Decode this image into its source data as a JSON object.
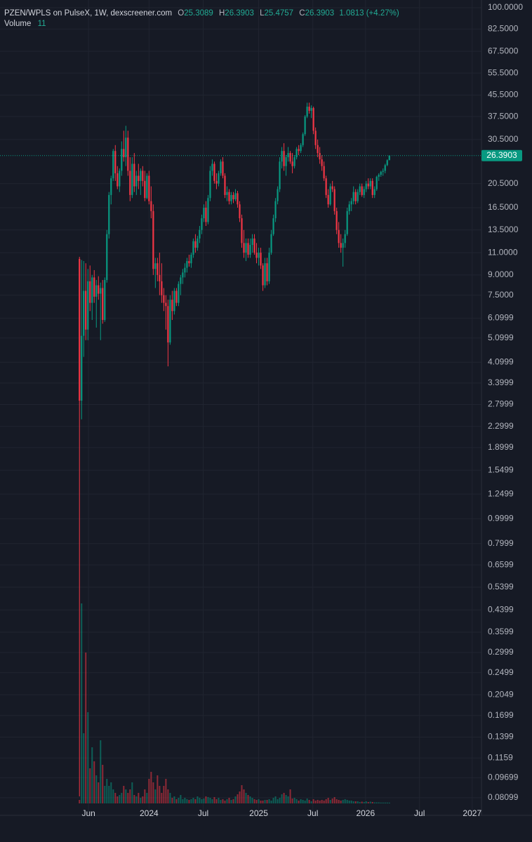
{
  "header": {
    "symbol": "PZEN/WPLS on PulseX, 1W, dexscreener.com",
    "open_label": "O",
    "open": "25.3089",
    "high_label": "H",
    "high": "26.3903",
    "low_label": "L",
    "low": "25.4757",
    "close_label": "C",
    "close": "26.3903",
    "change": "1.0813 (+4.27%)",
    "volume_label": "Volume",
    "volume": "11"
  },
  "chart_data": {
    "type": "candlestick",
    "log_scale": true,
    "grid": true,
    "up_color": "#089981",
    "down_color": "#f23645",
    "ylim": [
      0.07,
      107.2
    ],
    "yticks": [
      {
        "value": 100,
        "label": "100.0000"
      },
      {
        "value": 82.5,
        "label": "82.5000"
      },
      {
        "value": 67.5,
        "label": "67.5000"
      },
      {
        "value": 55.5,
        "label": "55.5000"
      },
      {
        "value": 45.5,
        "label": "45.5000"
      },
      {
        "value": 37.5,
        "label": "37.5000"
      },
      {
        "value": 30.5,
        "label": "30.5000"
      },
      {
        "value": 20.5,
        "label": "20.5000"
      },
      {
        "value": 16.5,
        "label": "16.5000"
      },
      {
        "value": 13.5,
        "label": "13.5000"
      },
      {
        "value": 11,
        "label": "11.0000"
      },
      {
        "value": 9,
        "label": "9.0000"
      },
      {
        "value": 7.5,
        "label": "7.5000"
      },
      6.0999,
      5.0999,
      4.0999,
      3.3999,
      2.7999,
      2.2999,
      1.8999,
      1.5499,
      1.2499,
      0.9999,
      0.7999,
      0.6599,
      0.5399,
      0.4399,
      0.3599,
      0.2999,
      0.2499,
      0.2049,
      0.1699,
      0.1399,
      0.1159,
      0.09699,
      0.08099
    ],
    "xlim": [
      -37.7,
      190.7
    ],
    "xticks": [
      {
        "value": 4.3,
        "label": "Jun"
      },
      {
        "value": 33,
        "label": "2024"
      },
      {
        "value": 58.7,
        "label": "Jul"
      },
      {
        "value": 85,
        "label": "2025"
      },
      {
        "value": 110.7,
        "label": "Jul"
      },
      {
        "value": 135.7,
        "label": "2026"
      },
      {
        "value": 161.3,
        "label": "Jul"
      },
      {
        "value": 186.3,
        "label": "2027"
      }
    ],
    "last_price": 26.3903,
    "vlim": [
      0,
      2900
    ],
    "ohlc": [
      [
        10.4,
        10.6,
        0.082,
        2.9
      ],
      [
        2.9,
        10.3,
        2.45,
        5.2
      ],
      [
        5.2,
        10.2,
        4.3,
        7.8
      ],
      [
        7.8,
        10,
        5,
        5.5
      ],
      [
        5.5,
        9.5,
        5,
        8.5
      ],
      [
        8.5,
        9.8,
        6.5,
        7
      ],
      [
        7,
        9,
        6,
        8.8
      ],
      [
        8.8,
        9.4,
        7,
        7.4
      ],
      [
        7.4,
        8.6,
        5.6,
        8.2
      ],
      [
        8.2,
        8.9,
        7.2,
        7.6
      ],
      [
        7.6,
        8.4,
        5,
        8
      ],
      [
        8,
        8.6,
        5.8,
        6
      ],
      [
        6,
        8.8,
        5.9,
        8.6
      ],
      [
        8.6,
        13.5,
        8.4,
        13
      ],
      [
        13,
        19,
        12.5,
        18.5
      ],
      [
        18.5,
        22,
        17,
        21.5
      ],
      [
        21.5,
        28,
        21,
        27.5
      ],
      [
        27.5,
        29,
        21,
        22.5
      ],
      [
        22.5,
        24,
        19.5,
        20
      ],
      [
        20,
        23.5,
        19,
        23
      ],
      [
        23,
        30,
        22,
        28
      ],
      [
        28,
        33,
        25,
        26
      ],
      [
        26,
        34.5,
        24,
        31
      ],
      [
        31,
        33,
        22,
        23
      ],
      [
        23,
        26,
        17.5,
        18.5
      ],
      [
        18.5,
        26,
        18,
        24.5
      ],
      [
        24.5,
        27,
        19,
        20
      ],
      [
        20,
        23,
        18.5,
        22
      ],
      [
        22,
        24.5,
        19.5,
        21
      ],
      [
        21,
        23.5,
        18.5,
        23
      ],
      [
        23,
        24,
        20,
        21
      ],
      [
        21,
        23,
        17.5,
        18
      ],
      [
        18,
        22.5,
        17.8,
        22
      ],
      [
        22,
        23,
        17,
        17.5
      ],
      [
        17.5,
        20,
        15,
        16
      ],
      [
        16,
        17,
        9,
        9.5
      ],
      [
        9.5,
        10.5,
        8,
        10
      ],
      [
        10,
        10.5,
        8.5,
        9
      ],
      [
        9,
        11,
        7.5,
        8.5
      ],
      [
        8.5,
        10,
        7,
        7.5
      ],
      [
        7.5,
        8,
        6.5,
        7
      ],
      [
        7,
        7.5,
        5.5,
        6.8
      ],
      [
        6.8,
        7.2,
        3.95,
        4.9
      ],
      [
        4.9,
        7.5,
        4.8,
        7.2
      ],
      [
        7.2,
        7.8,
        6,
        6.5
      ],
      [
        6.5,
        8,
        6.3,
        7.8
      ],
      [
        7.8,
        8,
        6.8,
        7
      ],
      [
        7,
        8.5,
        6.8,
        8.3
      ],
      [
        8.3,
        9,
        7.5,
        8.8
      ],
      [
        8.8,
        9.5,
        8.3,
        9.2
      ],
      [
        9.2,
        10,
        8.8,
        9.6
      ],
      [
        9.6,
        10.5,
        9.2,
        10.2
      ],
      [
        10.2,
        10.8,
        9.7,
        10
      ],
      [
        10,
        11,
        9.6,
        10.8
      ],
      [
        10.8,
        12.5,
        10.5,
        12.2
      ],
      [
        12.2,
        13,
        11,
        11.5
      ],
      [
        11.5,
        12.8,
        11.2,
        12.5
      ],
      [
        12.5,
        14,
        12,
        13.5
      ],
      [
        13.5,
        15.5,
        13,
        15
      ],
      [
        15,
        17,
        14.5,
        16.5
      ],
      [
        16.5,
        17.5,
        14,
        14.5
      ],
      [
        14.5,
        18.5,
        14.2,
        18
      ],
      [
        18,
        24,
        17.5,
        23
      ],
      [
        23,
        25.5,
        22,
        24.5
      ],
      [
        24.5,
        25,
        20.5,
        21
      ],
      [
        21,
        22.5,
        19.5,
        20.5
      ],
      [
        20.5,
        23,
        20,
        22.5
      ],
      [
        22.5,
        25.5,
        22,
        25
      ],
      [
        25,
        26,
        21.5,
        22
      ],
      [
        22,
        22.5,
        18,
        18.5
      ],
      [
        18.5,
        20,
        17.5,
        19
      ],
      [
        19,
        19.5,
        17,
        17.5
      ],
      [
        17.5,
        19,
        17,
        18.5
      ],
      [
        18.5,
        19,
        17.2,
        17.8
      ],
      [
        17.8,
        19.5,
        17.5,
        18.8
      ],
      [
        18.8,
        19.2,
        16.5,
        17
      ],
      [
        17,
        17.5,
        14.5,
        15
      ],
      [
        15,
        15.5,
        11.5,
        12
      ],
      [
        12,
        13.5,
        10.5,
        11
      ],
      [
        11,
        12.5,
        10.2,
        12
      ],
      [
        12,
        12.5,
        10.5,
        10.8
      ],
      [
        10.8,
        12.5,
        10.5,
        11.8
      ],
      [
        11.8,
        13,
        11,
        12.5
      ],
      [
        12.5,
        13,
        10.8,
        11
      ],
      [
        11,
        12,
        10,
        10.5
      ],
      [
        10.5,
        11.5,
        9.8,
        11
      ],
      [
        11,
        11.5,
        9.5,
        9.8
      ],
      [
        9.8,
        10,
        7.8,
        8.2
      ],
      [
        8.2,
        10.5,
        8,
        10
      ],
      [
        10,
        10.5,
        8.2,
        8.5
      ],
      [
        8.5,
        11.5,
        8.3,
        11
      ],
      [
        11,
        13.5,
        10.8,
        13
      ],
      [
        13,
        15.5,
        12.8,
        15
      ],
      [
        15,
        18,
        14.5,
        17.5
      ],
      [
        17.5,
        20,
        17,
        19.5
      ],
      [
        19.5,
        26,
        19,
        25
      ],
      [
        25,
        28.5,
        23.5,
        27.5
      ],
      [
        27.5,
        29.5,
        23,
        24
      ],
      [
        24,
        26.5,
        22,
        26
      ],
      [
        26,
        28.5,
        25,
        27
      ],
      [
        27,
        27.5,
        24.5,
        25
      ],
      [
        25,
        27,
        22.5,
        24
      ],
      [
        24,
        26.5,
        23.5,
        26
      ],
      [
        26,
        28.5,
        25.5,
        28
      ],
      [
        28,
        29,
        26.5,
        27.5
      ],
      [
        27.5,
        29.5,
        27,
        29
      ],
      [
        29,
        32.5,
        28.5,
        32
      ],
      [
        32,
        38,
        31.5,
        37.5
      ],
      [
        37.5,
        42.5,
        37,
        41
      ],
      [
        41,
        42.5,
        38.5,
        39.5
      ],
      [
        39.5,
        41.5,
        37,
        40.5
      ],
      [
        40.5,
        41,
        32,
        33
      ],
      [
        33,
        34,
        28,
        29
      ],
      [
        29,
        30.5,
        26,
        27
      ],
      [
        27,
        28.5,
        24.5,
        25.5
      ],
      [
        25.5,
        26.5,
        23,
        24
      ],
      [
        24,
        25,
        21,
        21.5
      ],
      [
        21.5,
        22,
        18,
        18.5
      ],
      [
        18.5,
        19.5,
        16.5,
        17
      ],
      [
        17,
        20.5,
        16.8,
        20
      ],
      [
        20,
        21,
        19,
        19.5
      ],
      [
        19.5,
        20,
        15.5,
        16
      ],
      [
        16,
        16.5,
        13,
        13.5
      ],
      [
        13.5,
        14.5,
        11.5,
        12
      ],
      [
        12,
        13,
        11,
        11.5
      ],
      [
        11.5,
        12.5,
        9.7,
        12
      ],
      [
        12,
        13.5,
        11.5,
        13
      ],
      [
        13,
        16.5,
        12.8,
        16
      ],
      [
        16,
        17.5,
        15.5,
        17
      ],
      [
        17,
        18,
        16,
        17.5
      ],
      [
        17.5,
        20,
        17,
        19
      ],
      [
        19,
        19.5,
        17,
        17.5
      ],
      [
        17.5,
        19.5,
        17.2,
        19
      ],
      [
        19,
        20.5,
        18.5,
        20
      ],
      [
        20,
        20.5,
        18.2,
        18.5
      ],
      [
        18.5,
        20,
        18,
        19.5
      ],
      [
        19.5,
        21,
        19,
        20.5
      ],
      [
        20.5,
        21.5,
        19.5,
        20
      ],
      [
        20,
        21.5,
        19.5,
        21
      ],
      [
        21,
        21.5,
        18,
        18.5
      ],
      [
        18.5,
        20,
        18,
        19.5
      ],
      [
        19.5,
        22,
        19.2,
        21.8
      ],
      [
        21.8,
        22.5,
        21,
        22.2
      ],
      [
        22.2,
        23,
        21.8,
        22.8
      ],
      [
        22.8,
        23.5,
        22,
        23
      ],
      [
        23,
        24.5,
        22.5,
        24.2
      ],
      [
        24.2,
        25.5,
        24,
        25.3089
      ],
      [
        25.3089,
        26.3903,
        25.4757,
        26.3903
      ]
    ],
    "volume": [
      50,
      2850,
      1000,
      2150,
      1300,
      500,
      800,
      600,
      400,
      300,
      900,
      550,
      250,
      350,
      250,
      300,
      200,
      150,
      100,
      120,
      150,
      250,
      200,
      150,
      200,
      300,
      120,
      100,
      150,
      80,
      100,
      200,
      150,
      350,
      450,
      300,
      200,
      400,
      250,
      150,
      250,
      350,
      200,
      150,
      80,
      100,
      60,
      80,
      120,
      60,
      80,
      60,
      50,
      60,
      80,
      60,
      100,
      80,
      60,
      70,
      100,
      90,
      80,
      60,
      90,
      60,
      80,
      50,
      60,
      40,
      60,
      80,
      50,
      60,
      100,
      130,
      170,
      260,
      200,
      150,
      120,
      100,
      80,
      60,
      50,
      60,
      40,
      40,
      50,
      50,
      60,
      40,
      80,
      100,
      60,
      80,
      130,
      150,
      120,
      100,
      200,
      70,
      80,
      60,
      40,
      60,
      50,
      40,
      70,
      50,
      30,
      60,
      40,
      50,
      40,
      50,
      40,
      60,
      80,
      50,
      70,
      90,
      60,
      50,
      40,
      50,
      60,
      50,
      40,
      40,
      30,
      30,
      30,
      20,
      25,
      20,
      30,
      20,
      25,
      20,
      15,
      15,
      15,
      12,
      12,
      12,
      12,
      11
    ]
  }
}
